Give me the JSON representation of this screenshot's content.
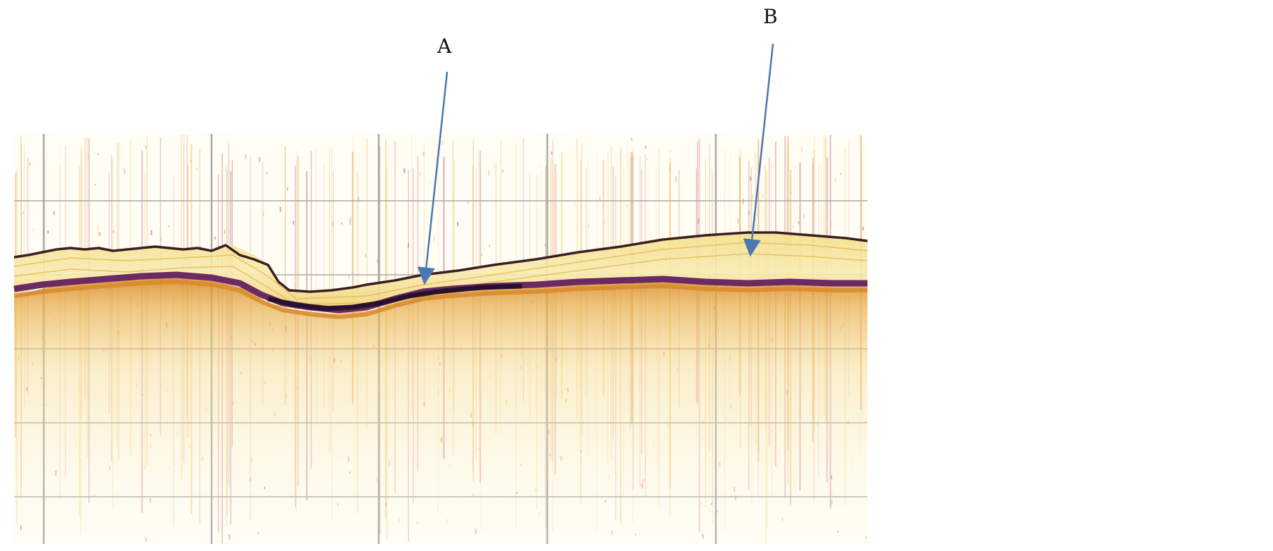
{
  "figure": {
    "description_kind": "sub-bottom echogram",
    "annotations": [
      {
        "id": "A",
        "text": "A"
      },
      {
        "id": "B",
        "text": "B"
      }
    ],
    "colors": {
      "background": "#ffffff",
      "echogram_base": "#fffdf4",
      "grid": "#a9a9a9",
      "sediment_light": "#f6e9a8",
      "sediment_mid": "#e8c860",
      "sediment_orange": "#d88a2a",
      "strong_reflector": "#2a1030",
      "reflector_purple": "#6b2a63",
      "arrow": "#4a78b0"
    }
  }
}
